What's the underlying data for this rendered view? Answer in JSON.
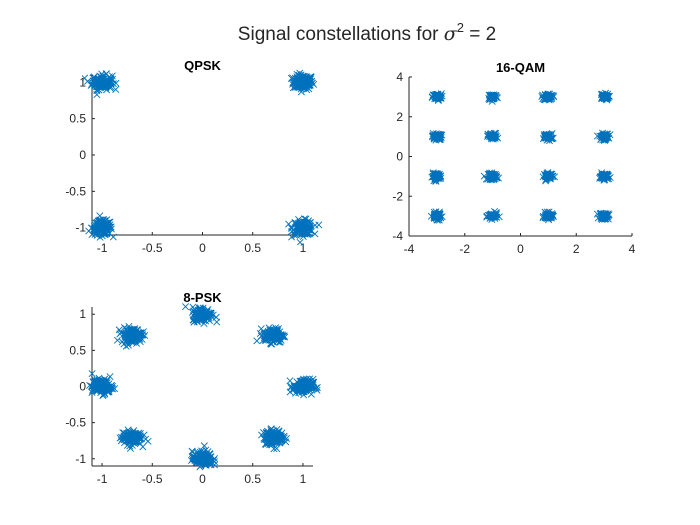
{
  "figure": {
    "title_prefix": "Signal constellations for ",
    "title_symbol": "σ",
    "title_exponent": "2",
    "title_suffix": " = 2"
  },
  "colors": {
    "marker": "#0072BD",
    "axis": "#262626",
    "background": "#ffffff"
  },
  "chart_data": [
    {
      "type": "scatter",
      "title": "QPSK",
      "marker": "x",
      "xlim": [
        -1.1,
        1.1
      ],
      "ylim": [
        -1.1,
        1.1
      ],
      "xticks": [
        -1,
        -0.5,
        0,
        0.5,
        1
      ],
      "xticklabels": [
        "-1",
        "-0.5",
        "0",
        "0.5",
        "1"
      ],
      "yticks": [
        -1,
        -0.5,
        0,
        0.5,
        1
      ],
      "yticklabels": [
        "-1",
        "-0.5",
        "0",
        "0.5",
        "1"
      ],
      "grid": false,
      "noise_spread": 0.05,
      "clusters": [
        [
          1,
          1
        ],
        [
          -1,
          1
        ],
        [
          -1,
          -1
        ],
        [
          1,
          -1
        ]
      ]
    },
    {
      "type": "scatter",
      "title": "16-QAM",
      "marker": "x",
      "xlim": [
        -4,
        4
      ],
      "ylim": [
        -4,
        4
      ],
      "xticks": [
        -4,
        -2,
        0,
        2,
        4
      ],
      "xticklabels": [
        "-4",
        "-2",
        "0",
        "2",
        "4"
      ],
      "yticks": [
        -4,
        -2,
        0,
        2,
        4
      ],
      "yticklabels": [
        "-4",
        "-2",
        "0",
        "2",
        "4"
      ],
      "grid": false,
      "noise_spread": 0.08,
      "clusters": [
        [
          -3,
          3
        ],
        [
          -1,
          3
        ],
        [
          1,
          3
        ],
        [
          3,
          3
        ],
        [
          -3,
          1
        ],
        [
          -1,
          1
        ],
        [
          1,
          1
        ],
        [
          3,
          1
        ],
        [
          -3,
          -1
        ],
        [
          -1,
          -1
        ],
        [
          1,
          -1
        ],
        [
          3,
          -1
        ],
        [
          -3,
          -3
        ],
        [
          -1,
          -3
        ],
        [
          1,
          -3
        ],
        [
          3,
          -3
        ]
      ]
    },
    {
      "type": "scatter",
      "title": "8-PSK",
      "marker": "x",
      "xlim": [
        -1.1,
        1.1
      ],
      "ylim": [
        -1.1,
        1.1
      ],
      "xticks": [
        -1,
        -0.5,
        0,
        0.5,
        1
      ],
      "xticklabels": [
        "-1",
        "-0.5",
        "0",
        "0.5",
        "1"
      ],
      "yticks": [
        -1,
        -0.5,
        0,
        0.5,
        1
      ],
      "yticklabels": [
        "-1",
        "-0.5",
        "0",
        "0.5",
        "1"
      ],
      "grid": false,
      "noise_spread": 0.05,
      "clusters": [
        [
          1,
          0
        ],
        [
          0.707,
          0.707
        ],
        [
          0,
          1
        ],
        [
          -0.707,
          0.707
        ],
        [
          -1,
          0
        ],
        [
          -0.707,
          -0.707
        ],
        [
          0,
          -1
        ],
        [
          0.707,
          -0.707
        ]
      ]
    }
  ]
}
